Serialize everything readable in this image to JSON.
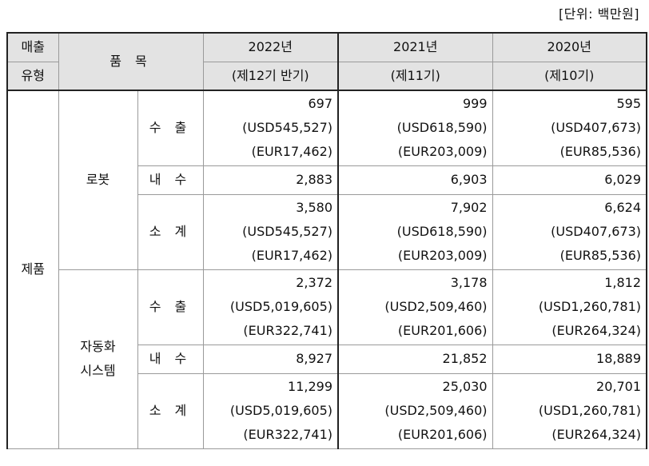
{
  "unit_label": "[단위: 백만원]",
  "header": {
    "type_line1": "매출",
    "type_line2": "유형",
    "item": "품 목",
    "years": [
      {
        "year": "2022년",
        "period": "(제12기 반기)"
      },
      {
        "year": "2021년",
        "period": "(제11기)"
      },
      {
        "year": "2020년",
        "period": "(제10기)"
      }
    ]
  },
  "category": "제품",
  "groups": [
    {
      "name": "로봇",
      "rows": [
        {
          "label": "수 출",
          "values": [
            [
              "697",
              "(USD545,527)",
              "(EUR17,462)"
            ],
            [
              "999",
              "(USD618,590)",
              "(EUR203,009)"
            ],
            [
              "595",
              "(USD407,673)",
              "(EUR85,536)"
            ]
          ]
        },
        {
          "label": "내 수",
          "values": [
            [
              "2,883"
            ],
            [
              "6,903"
            ],
            [
              "6,029"
            ]
          ]
        },
        {
          "label": "소 계",
          "values": [
            [
              "3,580",
              "(USD545,527)",
              "(EUR17,462)"
            ],
            [
              "7,902",
              "(USD618,590)",
              "(EUR203,009)"
            ],
            [
              "6,624",
              "(USD407,673)",
              "(EUR85,536)"
            ]
          ]
        }
      ]
    },
    {
      "name_line1": "자동화",
      "name_line2": "시스템",
      "rows": [
        {
          "label": "수 출",
          "values": [
            [
              "2,372",
              "(USD5,019,605)",
              "(EUR322,741)"
            ],
            [
              "3,178",
              "(USD2,509,460)",
              "(EUR201,606)"
            ],
            [
              "1,812",
              "(USD1,260,781)",
              "(EUR264,324)"
            ]
          ]
        },
        {
          "label": "내 수",
          "values": [
            [
              "8,927"
            ],
            [
              "21,852"
            ],
            [
              "18,889"
            ]
          ]
        },
        {
          "label": "소 계",
          "values": [
            [
              "11,299",
              "(USD5,019,605)",
              "(EUR322,741)"
            ],
            [
              "25,030",
              "(USD2,509,460)",
              "(EUR201,606)"
            ],
            [
              "20,701",
              "(USD1,260,781)",
              "(EUR264,324)"
            ]
          ]
        }
      ]
    }
  ]
}
